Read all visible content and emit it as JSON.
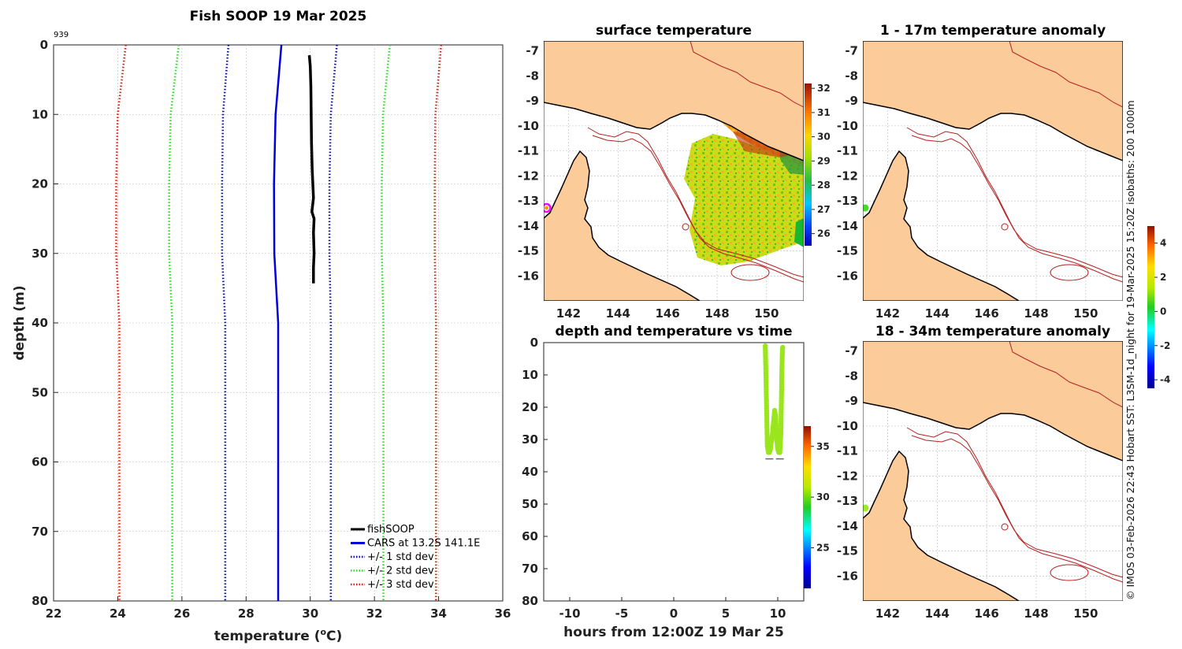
{
  "credit": "© IMOS 03-Feb-2026 22:43 Hobart SST: L3SM-1d_night for 19-Mar-2025 15:20Z isobaths: 200  1000m",
  "chart_data": [
    {
      "id": "profile",
      "type": "line",
      "title": "Fish SOOP 19 Mar 2025",
      "annotation": "939",
      "xlabel_main": "temperature (",
      "xlabel_sup": "o",
      "xlabel_end": "C)",
      "ylabel": "depth (m)",
      "xlim": [
        22,
        36
      ],
      "ylim": [
        0,
        80
      ],
      "xticks": [
        "22",
        "24",
        "26",
        "28",
        "30",
        "32",
        "34",
        "36"
      ],
      "yticks": [
        "0",
        "10",
        "20",
        "30",
        "40",
        "50",
        "60",
        "70",
        "80"
      ],
      "grid": true,
      "legend_position": "bottom-right",
      "series": [
        {
          "name": "fishSOOP",
          "color": "#000000",
          "style": "solid",
          "width": 3.5,
          "depth": [
            1.5,
            3,
            6,
            10,
            14,
            18,
            22,
            24,
            25,
            27,
            30,
            32,
            34.3
          ],
          "temp": [
            29.97,
            30.0,
            30.02,
            30.03,
            30.04,
            30.06,
            30.1,
            30.05,
            30.12,
            30.1,
            30.12,
            30.1,
            30.1
          ]
        },
        {
          "name": "CARS at 13.2S 141.1E",
          "color": "#0000dd",
          "style": "solid",
          "width": 2.5,
          "depth": [
            0,
            10,
            20,
            30,
            40,
            50,
            60,
            70,
            80
          ],
          "temp": [
            29.1,
            28.92,
            28.87,
            28.88,
            29.0,
            29.0,
            29.0,
            29.0,
            29.0
          ]
        },
        {
          "name": "+/- 1 std dev",
          "color": "#0000dd",
          "style": "dot",
          "width": 2,
          "depth": [
            0,
            10,
            20,
            30,
            40,
            50,
            60,
            70,
            80
          ],
          "temp": [
            27.45,
            27.28,
            27.25,
            27.25,
            27.35,
            27.35,
            27.35,
            27.35,
            27.35
          ]
        },
        {
          "name": "",
          "color": "#0000dd",
          "style": "dot",
          "width": 2,
          "depth": [
            0,
            10,
            20,
            30,
            40,
            50,
            60,
            70,
            80
          ],
          "temp": [
            30.83,
            30.64,
            30.6,
            30.6,
            30.64,
            30.64,
            30.64,
            30.64,
            30.64
          ]
        },
        {
          "name": "+/- 2 std dev",
          "color": "#22dd22",
          "style": "dot",
          "width": 2,
          "depth": [
            0,
            10,
            20,
            30,
            40,
            50,
            60,
            70,
            80
          ],
          "temp": [
            25.9,
            25.65,
            25.6,
            25.6,
            25.7,
            25.7,
            25.7,
            25.7,
            25.7
          ]
        },
        {
          "name": "",
          "color": "#22dd22",
          "style": "dot",
          "width": 2,
          "depth": [
            0,
            10,
            20,
            30,
            40,
            50,
            60,
            70,
            80
          ],
          "temp": [
            32.48,
            32.27,
            32.23,
            32.23,
            32.28,
            32.28,
            32.28,
            32.28,
            32.28
          ]
        },
        {
          "name": "+/- 3 std dev",
          "color": "#ee1111",
          "style": "dot",
          "width": 2,
          "depth": [
            0,
            10,
            20,
            30,
            40,
            50,
            60,
            70,
            80
          ],
          "temp": [
            24.25,
            24.0,
            23.95,
            23.95,
            24.05,
            24.05,
            24.05,
            24.05,
            24.05
          ]
        },
        {
          "name": "",
          "color": "#ee1111",
          "style": "dot",
          "width": 2,
          "depth": [
            0,
            10,
            20,
            30,
            40,
            50,
            60,
            70,
            80
          ],
          "temp": [
            34.08,
            33.9,
            33.88,
            33.88,
            33.92,
            33.92,
            33.92,
            33.92,
            33.92
          ]
        }
      ]
    },
    {
      "id": "sst_map",
      "type": "heatmap",
      "title": "surface temperature",
      "xlim": [
        141,
        151.5
      ],
      "ylim": [
        -17,
        -6.6
      ],
      "xticks": [
        "142",
        "144",
        "146",
        "148",
        "150"
      ],
      "yticks": [
        "-7",
        "-8",
        "-9",
        "-10",
        "-11",
        "-12",
        "-13",
        "-14",
        "-15",
        "-16"
      ],
      "colorbar_range": [
        25.5,
        32.2
      ],
      "colorbar_ticks": [
        "26",
        "27",
        "28",
        "29",
        "30",
        "31",
        "32"
      ],
      "marker": {
        "lon": 141.1,
        "lat": -13.2,
        "color": "#ff00ff"
      },
      "land_color": "#fbcb9a"
    },
    {
      "id": "anomaly_shallow",
      "type": "heatmap",
      "title": "1 - 17m temperature anomaly",
      "xlim": [
        141,
        151.5
      ],
      "ylim": [
        -17,
        -6.6
      ],
      "xticks": [
        "142",
        "144",
        "146",
        "148",
        "150"
      ],
      "yticks": [
        "-7",
        "-8",
        "-9",
        "-10",
        "-11",
        "-12",
        "-13",
        "-14",
        "-15",
        "-16"
      ],
      "marker": {
        "lon": 141.1,
        "lat": -13.2,
        "color": "#44dd22"
      }
    },
    {
      "id": "anomaly_deep",
      "type": "heatmap",
      "title": "18 - 34m temperature anomaly",
      "xlim": [
        141,
        151.5
      ],
      "ylim": [
        -17,
        -6.6
      ],
      "xticks": [
        "142",
        "144",
        "146",
        "148",
        "150"
      ],
      "yticks": [
        "-7",
        "-8",
        "-9",
        "-10",
        "-11",
        "-12",
        "-13",
        "-14",
        "-15",
        "-16"
      ],
      "marker": {
        "lon": 141.1,
        "lat": -13.2,
        "color": "#99ee22"
      }
    },
    {
      "id": "anomaly_colorbar",
      "type": "heatmap",
      "colorbar_range": [
        -4.5,
        5
      ],
      "colorbar_ticks": [
        "4",
        "2",
        "0",
        "-2",
        "-4"
      ]
    },
    {
      "id": "time_series",
      "type": "scatter",
      "title": "depth and temperature vs time",
      "xlabel": "hours from 12:00Z 19 Mar 25",
      "xlim": [
        -12.5,
        12.5
      ],
      "ylim": [
        0,
        80
      ],
      "xticks": [
        "-10",
        "-5",
        "0",
        "5",
        "10"
      ],
      "yticks": [
        "0",
        "10",
        "20",
        "30",
        "40",
        "50",
        "60",
        "70",
        "80"
      ],
      "colorbar_range": [
        21,
        37
      ],
      "colorbar_ticks": [
        "35",
        "30",
        "25"
      ],
      "point_color": "#9ae61c",
      "hours": [
        8.8,
        8.85,
        8.9,
        8.95,
        9.0,
        9.1,
        9.2,
        9.3,
        9.5,
        9.7,
        9.8,
        9.9,
        10.0,
        10.1,
        10.2,
        10.3,
        10.35,
        10.4,
        10.45,
        10.5
      ],
      "depth": [
        1,
        8,
        16,
        24,
        32,
        34,
        34,
        33,
        28,
        21,
        23,
        30,
        33,
        34,
        34,
        28,
        18,
        8,
        2,
        1
      ],
      "bottom_marks_hours": [
        9.2,
        10.2
      ],
      "bottom_marks_depth": 36
    }
  ]
}
